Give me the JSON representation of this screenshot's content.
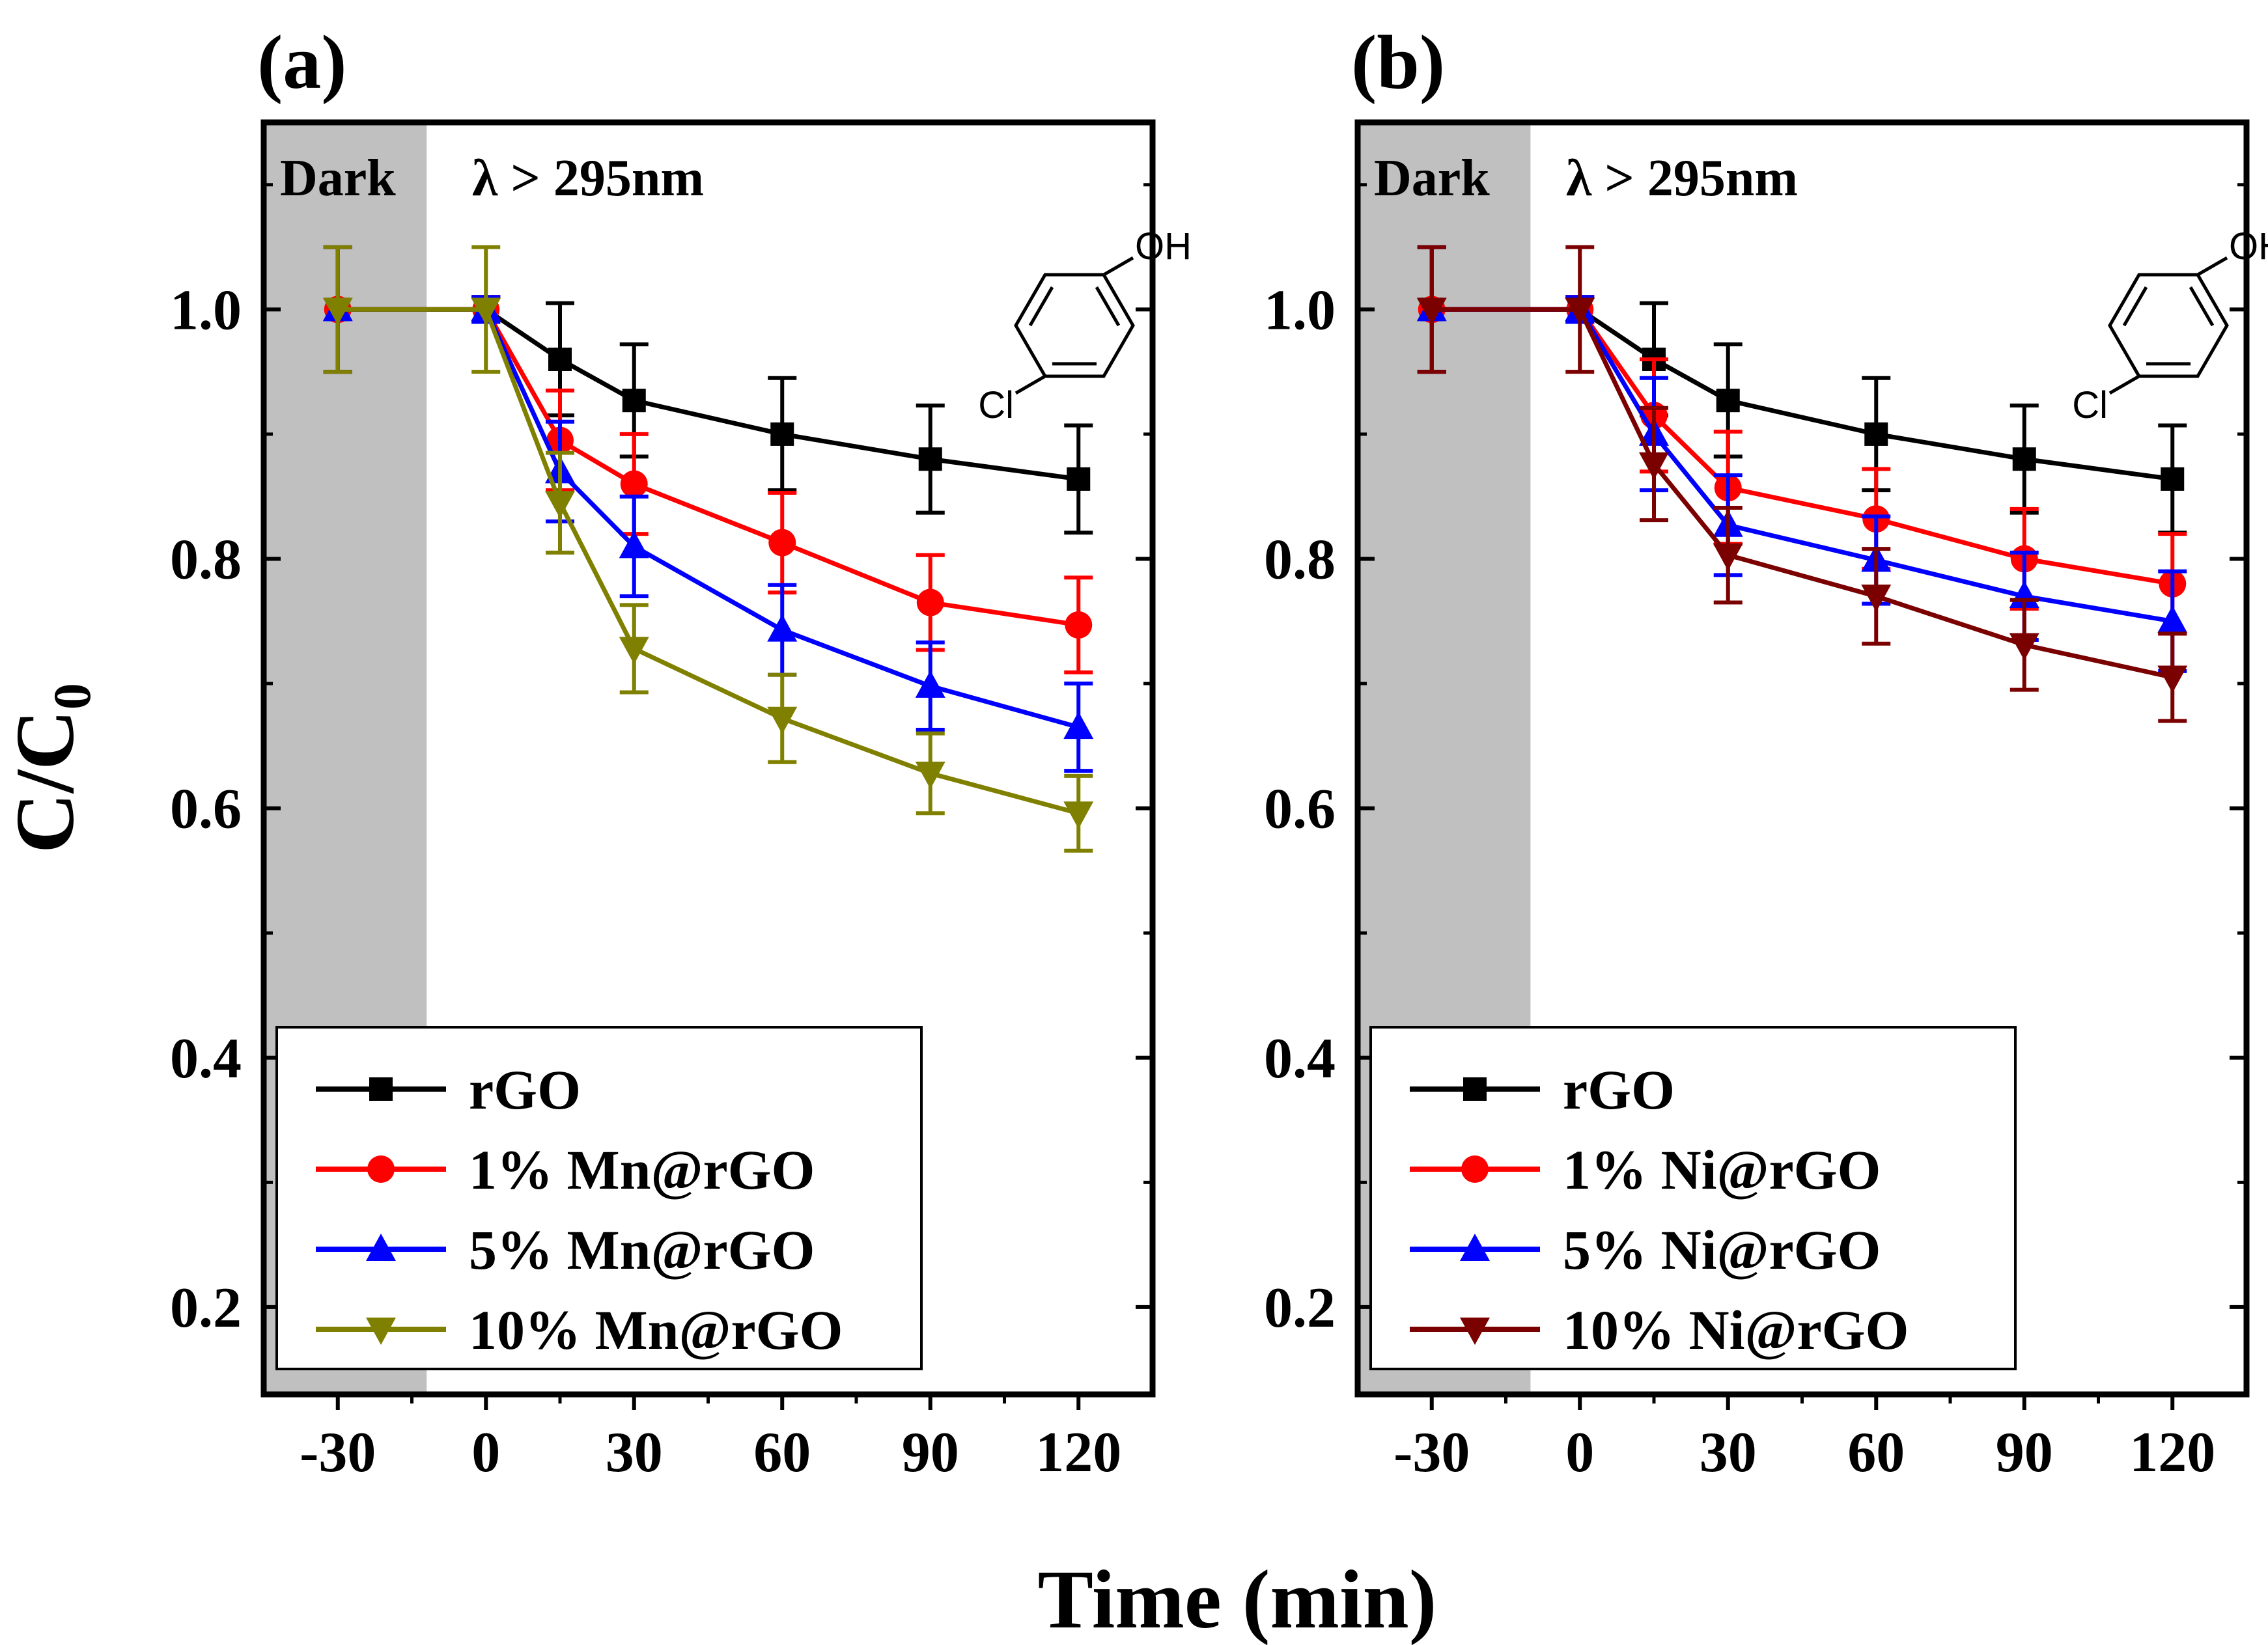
{
  "figure": {
    "ylabel_main": "C/C",
    "ylabel_sub": "0",
    "xlabel": "Time (min)"
  },
  "colors": {
    "axis": "#000000",
    "dark_band": "#c0c0c0",
    "rGO": "#000000",
    "one": "#ff0000",
    "five": "#0000ff",
    "ten_mn": "#808000",
    "ten_ni": "#7b0000"
  },
  "chart_data": [
    {
      "type": "line",
      "panel_label": "(a)",
      "dark_label": "Dark",
      "light_label": "λ > 295nm",
      "molecule": {
        "oh": "OH",
        "cl": "Cl"
      },
      "x": [
        -30,
        0,
        15,
        30,
        60,
        90,
        120
      ],
      "xticks": [
        "-30",
        "0",
        "30",
        "60",
        "90",
        "120"
      ],
      "xtick_values": [
        -30,
        0,
        30,
        60,
        90,
        120
      ],
      "yticks": [
        "0.2",
        "0.4",
        "0.6",
        "0.8",
        "1.0"
      ],
      "ytick_values": [
        0.2,
        0.4,
        0.6,
        0.8,
        1.0
      ],
      "xlim": [
        -45,
        135
      ],
      "ylim": [
        0.13,
        1.15
      ],
      "dark_region": [
        -45,
        -12
      ],
      "series": [
        {
          "name": "rGO",
          "marker": "square",
          "color": "#000000",
          "values": [
            1.0,
            1.0,
            0.96,
            0.927,
            0.9,
            0.88,
            0.864
          ],
          "err": [
            0.05,
            0.01,
            0.045,
            0.045,
            0.045,
            0.043,
            0.043
          ]
        },
        {
          "name": "1% Mn@rGO",
          "marker": "circle",
          "color": "#ff0000",
          "values": [
            1.0,
            1.0,
            0.895,
            0.86,
            0.813,
            0.765,
            0.747
          ],
          "err": [
            0.05,
            0.01,
            0.04,
            0.04,
            0.04,
            0.038,
            0.038
          ]
        },
        {
          "name": "5% Mn@rGO",
          "marker": "triangle-up",
          "color": "#0000ff",
          "values": [
            1.0,
            1.0,
            0.87,
            0.81,
            0.743,
            0.698,
            0.665
          ],
          "err": [
            0.05,
            0.01,
            0.04,
            0.04,
            0.036,
            0.035,
            0.035
          ]
        },
        {
          "name": "10% Mn@rGO",
          "marker": "triangle-down",
          "color": "#808000",
          "values": [
            1.0,
            1.0,
            0.845,
            0.728,
            0.672,
            0.628,
            0.596
          ],
          "err": [
            0.05,
            0.05,
            0.04,
            0.035,
            0.035,
            0.032,
            0.03
          ]
        }
      ]
    },
    {
      "type": "line",
      "panel_label": "(b)",
      "dark_label": "Dark",
      "light_label": "λ > 295nm",
      "molecule": {
        "oh": "OH",
        "cl": "Cl"
      },
      "x": [
        -30,
        0,
        15,
        30,
        60,
        90,
        120
      ],
      "xticks": [
        "-30",
        "0",
        "30",
        "60",
        "90",
        "120"
      ],
      "xtick_values": [
        -30,
        0,
        30,
        60,
        90,
        120
      ],
      "yticks": [
        "0.2",
        "0.4",
        "0.6",
        "0.8",
        "1.0"
      ],
      "ytick_values": [
        0.2,
        0.4,
        0.6,
        0.8,
        1.0
      ],
      "xlim": [
        -45,
        135
      ],
      "ylim": [
        0.13,
        1.15
      ],
      "dark_region": [
        -45,
        -10
      ],
      "series": [
        {
          "name": "rGO",
          "marker": "square",
          "color": "#000000",
          "values": [
            1.0,
            1.0,
            0.96,
            0.927,
            0.9,
            0.88,
            0.864
          ],
          "err": [
            0.05,
            0.01,
            0.045,
            0.045,
            0.045,
            0.043,
            0.043
          ]
        },
        {
          "name": "1% Ni@rGO",
          "marker": "circle",
          "color": "#ff0000",
          "values": [
            1.0,
            1.0,
            0.915,
            0.857,
            0.832,
            0.8,
            0.78
          ],
          "err": [
            0.05,
            0.01,
            0.045,
            0.045,
            0.04,
            0.04,
            0.04
          ]
        },
        {
          "name": "5% Ni@rGO",
          "marker": "triangle-up",
          "color": "#0000ff",
          "values": [
            1.0,
            1.0,
            0.9,
            0.827,
            0.799,
            0.77,
            0.75
          ],
          "err": [
            0.05,
            0.01,
            0.045,
            0.04,
            0.035,
            0.035,
            0.04
          ]
        },
        {
          "name": "10% Ni@rGO",
          "marker": "triangle-down",
          "color": "#7b0000",
          "values": [
            1.0,
            1.0,
            0.876,
            0.803,
            0.77,
            0.731,
            0.705
          ],
          "err": [
            0.05,
            0.05,
            0.045,
            0.038,
            0.038,
            0.036,
            0.035
          ]
        }
      ]
    }
  ]
}
